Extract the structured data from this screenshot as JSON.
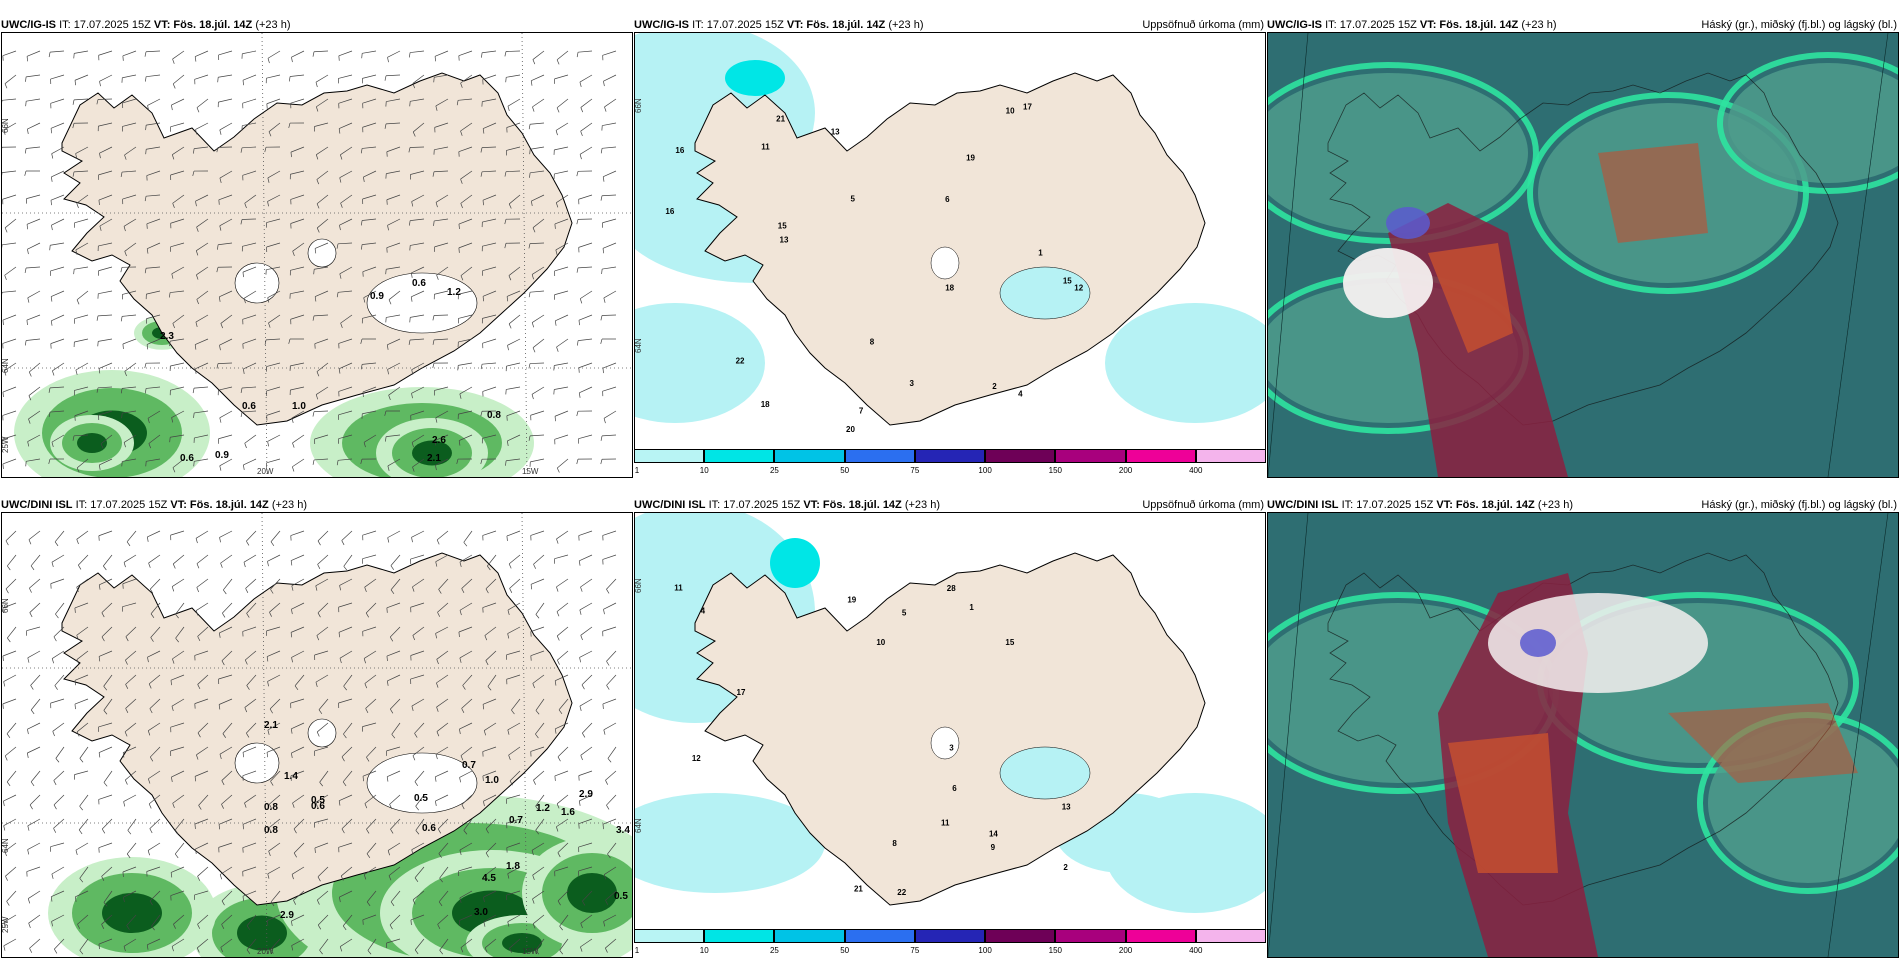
{
  "top": {
    "model": "UWC/IG-IS",
    "it": "IT: 17.07.2025 15Z",
    "vt": "VT: Fös. 18.júl. 14Z",
    "lead": "(+23 h)",
    "precip_title": "Uppsöfnuð úrkoma (mm)",
    "cloud_title": "Háský (gr.), miðský (fj.bl.) og lágský (bl.)",
    "rain_labels": [
      "0.9",
      "0.6",
      "1.2",
      "2.3",
      "0.6",
      "1.0",
      "0.8",
      "2.6",
      "2.1",
      "0.6",
      "0.9"
    ],
    "accum_labels": [
      "16",
      "11",
      "6",
      "7",
      "10",
      "20",
      "18",
      "13",
      "17",
      "12",
      "15",
      "21",
      "19",
      "22",
      "16",
      "18",
      "15",
      "13",
      "4",
      "3",
      "2",
      "1",
      "5",
      "8"
    ]
  },
  "bottom": {
    "model": "UWC/DINI ISL",
    "it": "IT: 17.07.2025 15Z",
    "vt": "VT: Fös. 18.júl. 14Z",
    "lead": "(+23 h)",
    "precip_title": "Uppsöfnuð úrkoma (mm)",
    "cloud_title": "Háský (gr.), miðský (fj.bl.) og lágský (bl.)",
    "rain_labels": [
      "2.1",
      "1.4",
      "0.5",
      "0.8",
      "0.6",
      "0.7",
      "1.0",
      "0.5",
      "0.6",
      "1.2",
      "2.9",
      "1.6",
      "0.7",
      "4.5",
      "1.8",
      "3.4",
      "0.5",
      "3.0",
      "2.9",
      "0.8"
    ],
    "accum_labels": [
      "10",
      "9",
      "11",
      "15",
      "21",
      "19",
      "22",
      "28",
      "17",
      "12",
      "14",
      "5",
      "3",
      "4",
      "2",
      "1",
      "13",
      "11",
      "8",
      "6"
    ]
  },
  "axes": {
    "lat_labels": [
      "66N",
      "64N",
      "25W"
    ],
    "lon_labels": [
      "20W",
      "15W"
    ],
    "lat_labels_mid": [
      "66N",
      "64N"
    ]
  },
  "colorbar": {
    "ticks": [
      "1",
      "10",
      "25",
      "50",
      "75",
      "100",
      "150",
      "200",
      "400"
    ],
    "colors": [
      "#b8f4f4",
      "#00e5e5",
      "#00c3e6",
      "#2b6ff0",
      "#2525b5",
      "#6e0057",
      "#a8007d",
      "#ee0098",
      "#f4b4ec"
    ]
  },
  "colors": {
    "land": "#f1e5d8",
    "sea": "#ffffff",
    "precip_light": "#b6f2f4",
    "precip_cyan": "#00e6e6",
    "rain_light": "#c8efc8",
    "rain_mid": "#4caf50",
    "rain_dark": "#0b5d1e",
    "cloud_base": "#2e6e72",
    "cloud_low": "#4d9c8c",
    "cloud_edge": "#2fe3a0",
    "cloud_high": "#8b2040",
    "cloud_mid": "#c44f30",
    "cloud_white": "#f5f0f0",
    "cloud_blue": "#5a5ad0"
  }
}
